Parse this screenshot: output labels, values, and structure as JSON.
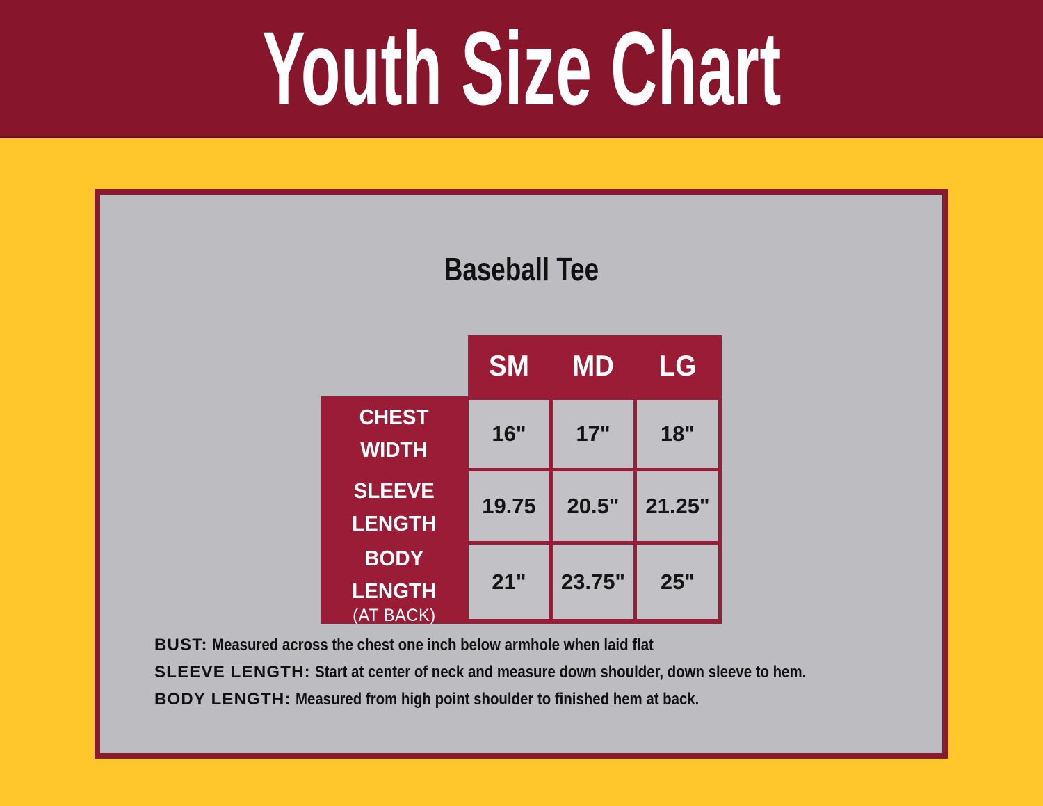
{
  "colors": {
    "banner_maroon": "#87152b",
    "table_maroon": "#9b1c37",
    "panel_border_maroon": "#8a1a2d",
    "background_yellow": "#ffc72c",
    "panel_gray": "#bdbdc1",
    "cell_gray": "#c2c2c6",
    "title_white": "#ffffff",
    "text_black": "#111111"
  },
  "banner": {
    "title": "Youth Size Chart"
  },
  "panel": {
    "title": "Baseball Tee"
  },
  "size_table": {
    "columns": [
      "SM",
      "MD",
      "LG"
    ],
    "rows": [
      {
        "label": "CHEST\nWIDTH",
        "sublabel": "",
        "values": [
          "16\"",
          "17\"",
          "18\""
        ]
      },
      {
        "label": "SLEEVE\nLENGTH",
        "sublabel": "",
        "values": [
          "19.75",
          "20.5\"",
          "21.25\""
        ]
      },
      {
        "label": "BODY\nLENGTH",
        "sublabel": "(AT BACK)",
        "values": [
          "21\"",
          "23.75\"",
          "25\""
        ]
      }
    ]
  },
  "notes": [
    {
      "label": "BUST:",
      "text": "Measured across the chest one inch below armhole when laid flat"
    },
    {
      "label": "SLEEVE LENGTH:",
      "text": "Start at center of neck and measure down shoulder, down sleeve to hem."
    },
    {
      "label": "BODY LENGTH:",
      "text": "Measured from high point shoulder to finished hem at back."
    }
  ],
  "chart_data": {
    "type": "table",
    "title": "Youth Size Chart — Baseball Tee",
    "columns": [
      "SM",
      "MD",
      "LG"
    ],
    "rows": [
      {
        "measurement": "Chest Width",
        "values": [
          "16\"",
          "17\"",
          "18\""
        ]
      },
      {
        "measurement": "Sleeve Length",
        "values": [
          "19.75",
          "20.5\"",
          "21.25\""
        ]
      },
      {
        "measurement": "Body Length (at back)",
        "values": [
          "21\"",
          "23.75\"",
          "25\""
        ]
      }
    ]
  }
}
